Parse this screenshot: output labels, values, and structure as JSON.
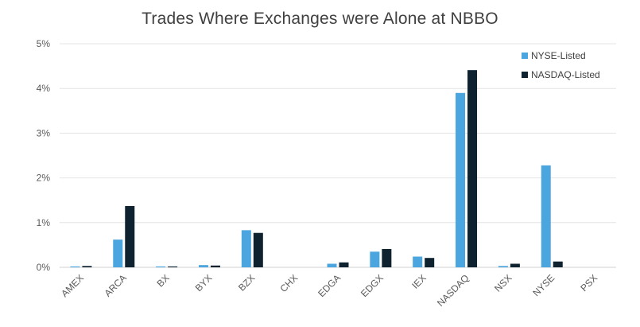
{
  "chart_data": {
    "type": "bar",
    "title": "Trades Where Exchanges were Alone at NBBO",
    "xlabel": "",
    "ylabel": "",
    "ylim": [
      0,
      5
    ],
    "yticks": [
      "0%",
      "1%",
      "2%",
      "3%",
      "4%",
      "5%"
    ],
    "grid": true,
    "legend_position": "top-right",
    "categories": [
      "AMEX",
      "ARCA",
      "BX",
      "BYX",
      "BZX",
      "CHX",
      "EDGA",
      "EDGX",
      "IEX",
      "NASDAQ",
      "NSX",
      "NYSE",
      "PSX"
    ],
    "series": [
      {
        "name": "NYSE-Listed",
        "color": "#4BA5DE",
        "values": [
          0.02,
          0.62,
          0.02,
          0.05,
          0.83,
          0.0,
          0.08,
          0.35,
          0.24,
          3.9,
          0.03,
          2.28,
          0.0
        ]
      },
      {
        "name": "NASDAQ-Listed",
        "color": "#0F2230",
        "values": [
          0.03,
          1.37,
          0.02,
          0.04,
          0.77,
          0.0,
          0.11,
          0.41,
          0.21,
          4.41,
          0.08,
          0.13,
          0.0
        ]
      }
    ]
  }
}
